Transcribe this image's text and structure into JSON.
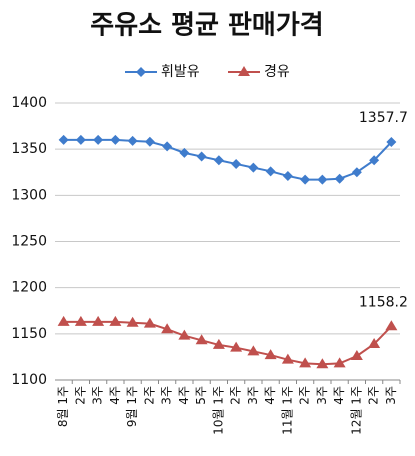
{
  "chart_data": {
    "type": "line",
    "title": "주유소 평균 판매가격",
    "categories": [
      "8월 1주",
      "2주",
      "3주",
      "4주",
      "9월 1주",
      "2주",
      "3주",
      "4주",
      "5주",
      "10월 1주",
      "2주",
      "3주",
      "4주",
      "11월 1주",
      "2주",
      "3주",
      "4주",
      "12월 1주",
      "2주",
      "3주"
    ],
    "series": [
      {
        "name": "휘발유",
        "color": "#3f7ccc",
        "marker": "diamond",
        "values": [
          1360,
          1360,
          1360,
          1360,
          1359,
          1358,
          1353,
          1346,
          1342,
          1338,
          1334,
          1330,
          1326,
          1321,
          1317,
          1317,
          1318,
          1325,
          1338,
          1357.7
        ]
      },
      {
        "name": "경유",
        "color": "#c0504d",
        "marker": "triangle",
        "values": [
          1163,
          1163,
          1163,
          1163,
          1162,
          1161,
          1155,
          1148,
          1143,
          1138,
          1135,
          1131,
          1127,
          1122,
          1118,
          1117,
          1118,
          1126,
          1139,
          1158.2
        ]
      }
    ],
    "ylim": [
      1100,
      1400
    ],
    "yticks": [
      1100,
      1150,
      1200,
      1250,
      1300,
      1350,
      1400
    ],
    "grid": true,
    "legend": "top"
  }
}
